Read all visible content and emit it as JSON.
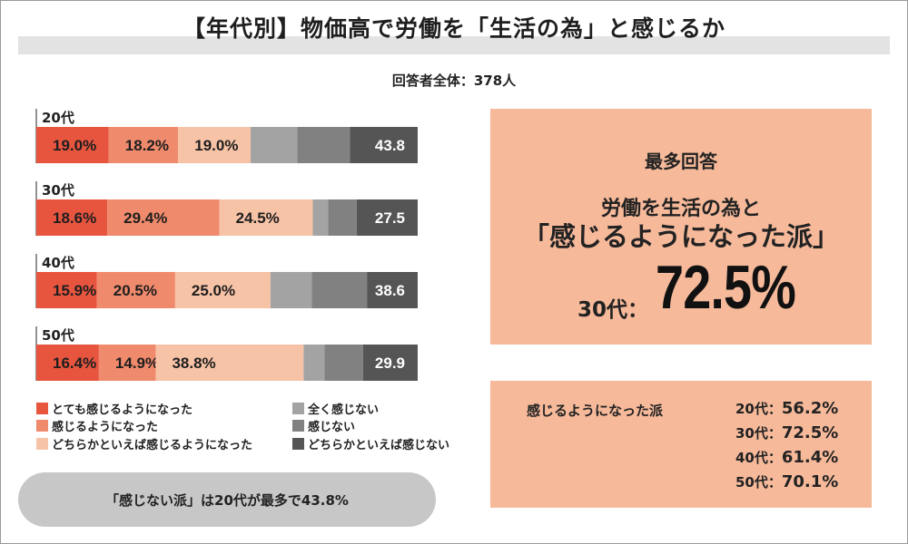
{
  "title": "【年代別】物価高で労働を「生活の為」と感じるか",
  "respondents": "回答者全体：378人",
  "chart_data": {
    "type": "bar",
    "orientation": "horizontal",
    "stacked": true,
    "categories": [
      "20代",
      "30代",
      "40代",
      "50代"
    ],
    "series": [
      {
        "name": "とても感じるようになった",
        "color": "#e8553f",
        "values": [
          19.0,
          18.6,
          15.9,
          16.4
        ],
        "labels": [
          "19.0%",
          "18.6%",
          "15.9%",
          "16.4%"
        ]
      },
      {
        "name": "感じるようになった",
        "color": "#f08a6c",
        "values": [
          18.2,
          29.4,
          20.5,
          14.9
        ],
        "labels": [
          "18.2%",
          "29.4%",
          "20.5%",
          "14.9%"
        ]
      },
      {
        "name": "どちらかといえば感じるようになった",
        "color": "#f7c3a6",
        "values": [
          19.0,
          24.5,
          25.0,
          38.8
        ],
        "labels": [
          "19.0%",
          "24.5%",
          "25.0%",
          "38.8%"
        ]
      },
      {
        "name": "全く感じない",
        "color": "#a3a3a3",
        "values": [
          12.2,
          4.0,
          10.8,
          5.5
        ],
        "labels": [
          "",
          "",
          "",
          ""
        ]
      },
      {
        "name": "感じない",
        "color": "#818181",
        "values": [
          13.8,
          7.5,
          14.5,
          10.1
        ],
        "labels": [
          "",
          "",
          "",
          ""
        ]
      },
      {
        "name": "どちらかといえば感じない",
        "color": "#555555",
        "values": [
          17.8,
          16.0,
          13.3,
          14.3
        ],
        "labels": [
          "",
          "",
          "",
          ""
        ]
      }
    ],
    "group_totals": {
      "labels": [
        "43.8",
        "27.5",
        "38.6",
        "29.9"
      ],
      "values": [
        43.8,
        27.5,
        38.6,
        29.9
      ]
    },
    "xlim": [
      0,
      100
    ]
  },
  "legend": {
    "items": [
      {
        "label": "とても感じるようになった",
        "color": "#e8553f"
      },
      {
        "label": "感じるようになった",
        "color": "#f08a6c"
      },
      {
        "label": "どちらかといえば感じるようになった",
        "color": "#f7c3a6"
      },
      {
        "label": "全く感じない",
        "color": "#a3a3a3"
      },
      {
        "label": "感じない",
        "color": "#818181"
      },
      {
        "label": "どちらかといえば感じない",
        "color": "#555555"
      }
    ]
  },
  "note": "「感じない派」は20代が最多で43.8%",
  "top_panel": {
    "heading": "最多回答",
    "line1": "労働を生活の為と",
    "line2": "「感じるようになった派」",
    "age": "30代：",
    "value": "72.5%"
  },
  "bottom_panel": {
    "label": "感じるようになった派",
    "rows": [
      {
        "age": "20代：",
        "value": "56.2%"
      },
      {
        "age": "30代：",
        "value": "72.5%"
      },
      {
        "age": "40代：",
        "value": "61.4%"
      },
      {
        "age": "50代：",
        "value": "70.1%"
      }
    ]
  }
}
